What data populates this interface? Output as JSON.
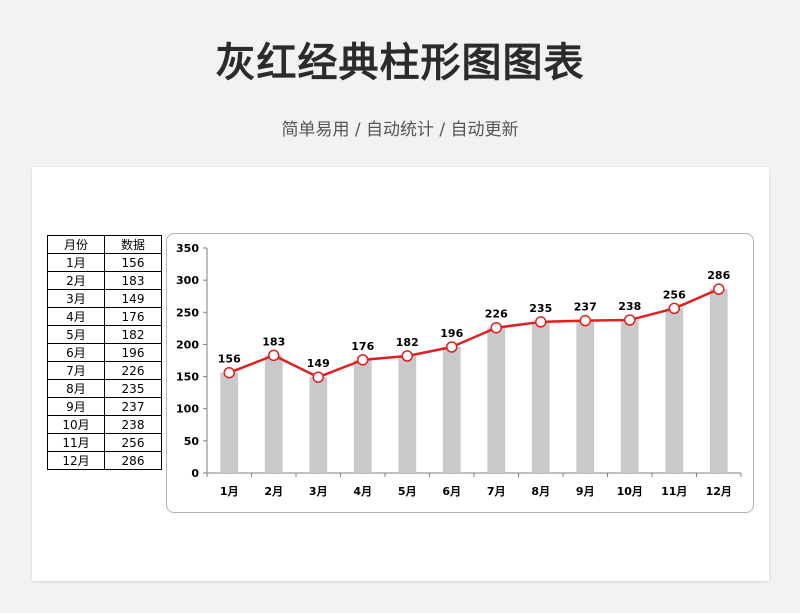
{
  "header": {
    "title": "灰红经典柱形图图表",
    "subtitle": "简单易用 / 自动统计 / 自动更新"
  },
  "table": {
    "columns": [
      "月份",
      "数据"
    ],
    "rows": [
      [
        "1月",
        "156"
      ],
      [
        "2月",
        "183"
      ],
      [
        "3月",
        "149"
      ],
      [
        "4月",
        "176"
      ],
      [
        "5月",
        "182"
      ],
      [
        "6月",
        "196"
      ],
      [
        "7月",
        "226"
      ],
      [
        "8月",
        "235"
      ],
      [
        "9月",
        "237"
      ],
      [
        "10月",
        "238"
      ],
      [
        "11月",
        "256"
      ],
      [
        "12月",
        "286"
      ]
    ]
  },
  "chart_data": {
    "type": "bar",
    "overlay": "line",
    "categories": [
      "1月",
      "2月",
      "3月",
      "4月",
      "5月",
      "6月",
      "7月",
      "8月",
      "9月",
      "10月",
      "11月",
      "12月"
    ],
    "values": [
      156,
      183,
      149,
      176,
      182,
      196,
      226,
      235,
      237,
      238,
      256,
      286
    ],
    "yticks": [
      "0",
      "50",
      "100",
      "150",
      "200",
      "250",
      "300",
      "350"
    ],
    "ylim": [
      0,
      350
    ],
    "grid": false,
    "legend": "none",
    "colors": {
      "bar": "#c9c9c9",
      "line": "#e02020",
      "marker_fill": "#ffffff",
      "text": "#000000"
    }
  }
}
